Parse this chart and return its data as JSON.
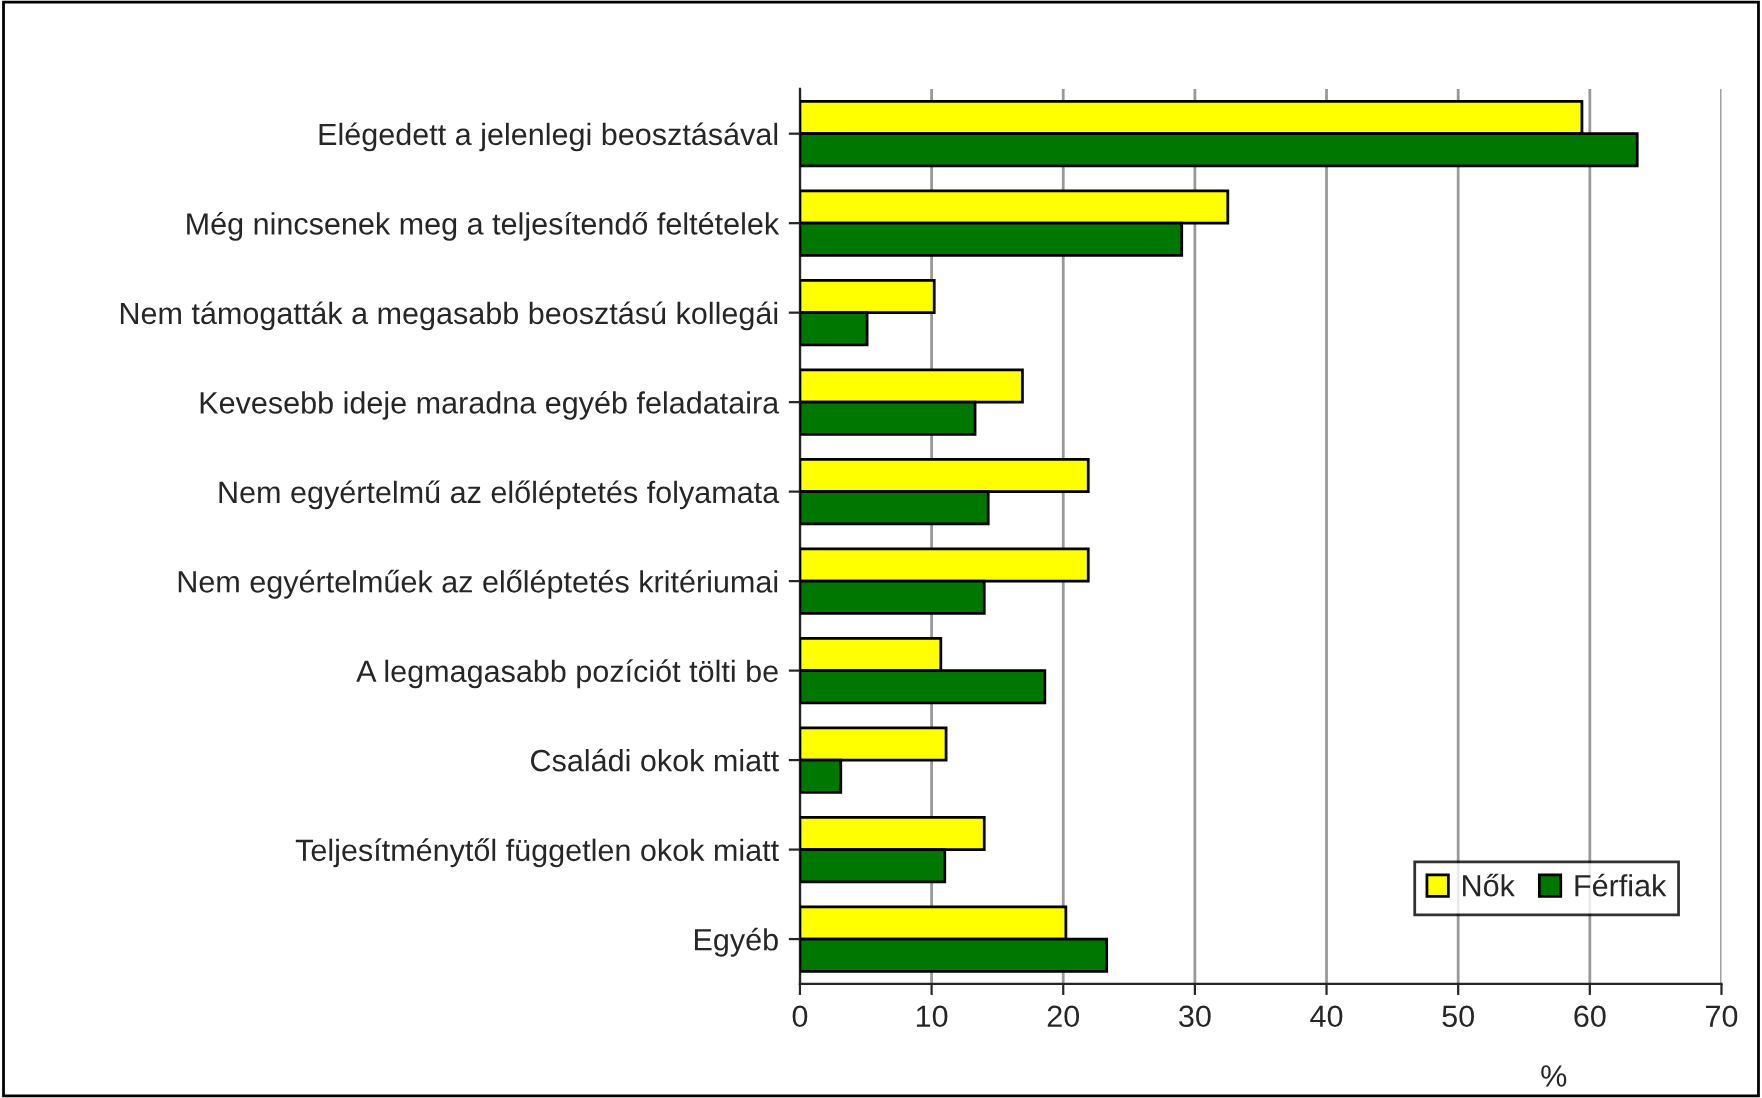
{
  "chart_data": {
    "type": "bar",
    "orientation": "horizontal",
    "xlabel": "%",
    "categories": [
      "Elégedett a jelenlegi beosztásával",
      "Még nincsenek meg a teljesítendő feltételek",
      "Nem támogatták a megasabb beosztású kollegái",
      "Kevesebb ideje maradna egyéb feladataira",
      "Nem egyértelmű az előléptetés folyamata",
      "Nem egyértelműek az előléptetés kritériumai",
      "A legmagasabb pozíciót tölti be",
      "Családi okok miatt",
      "Teljesítménytől független okok miatt",
      "Egyéb"
    ],
    "series": [
      {
        "name": "Nők",
        "color": "#ffff00",
        "values": [
          59.4,
          32.5,
          10.2,
          16.9,
          21.9,
          21.9,
          10.7,
          11.1,
          14.0,
          20.2
        ]
      },
      {
        "name": "Férfiak",
        "color": "#007700",
        "values": [
          63.6,
          29.0,
          5.1,
          13.3,
          14.3,
          14.0,
          18.6,
          3.1,
          11.0,
          23.3
        ]
      }
    ],
    "xlim": [
      0,
      70
    ],
    "xticks": [
      0,
      10,
      20,
      30,
      40,
      50,
      60,
      70
    ],
    "grid": "x",
    "legend": "bottom right"
  }
}
